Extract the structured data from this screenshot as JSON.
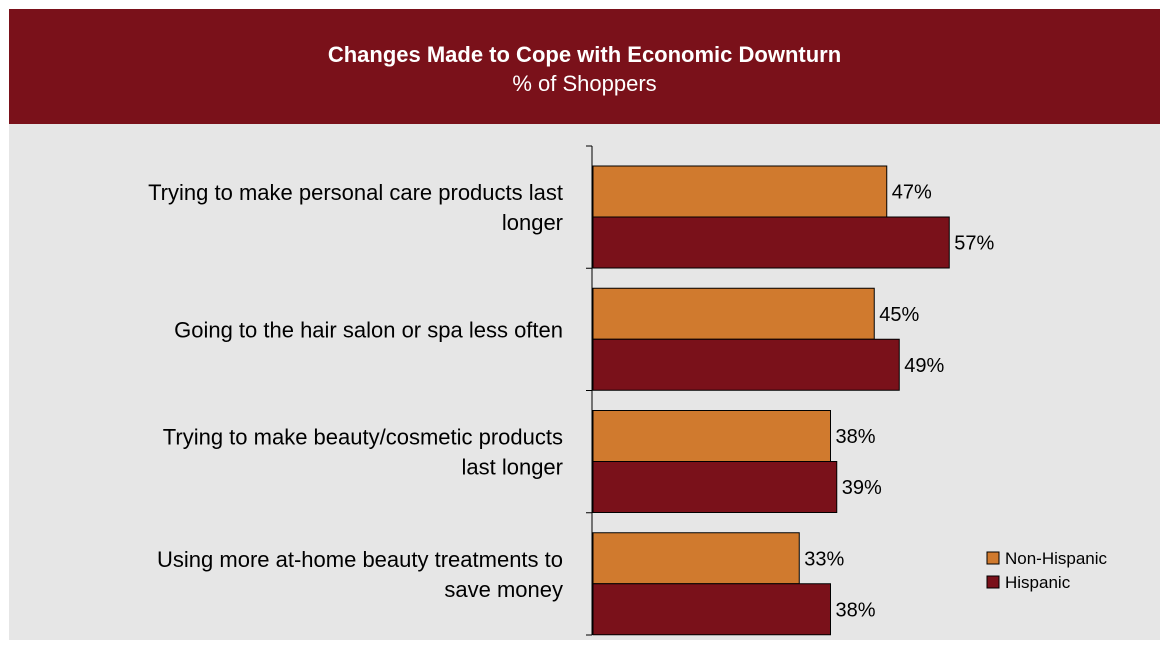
{
  "colors": {
    "header_bg": "#7a111a",
    "non_hispanic": "#d07a2e",
    "hispanic": "#7a111a",
    "plot_bg": "#e6e6e6"
  },
  "chart_data": {
    "type": "bar",
    "orientation": "horizontal",
    "title": "Changes Made to Cope with Economic Downturn",
    "subtitle": "% of Shoppers",
    "categories": [
      [
        "Trying to make personal care products last",
        "longer"
      ],
      [
        "Going to the hair salon or spa less often"
      ],
      [
        "Trying to make beauty/cosmetic products",
        "last longer"
      ],
      [
        "Using more at-home beauty treatments to",
        "save money"
      ]
    ],
    "series": [
      {
        "name": "Non-Hispanic",
        "values": [
          47,
          45,
          38,
          33
        ],
        "color": "#d07a2e"
      },
      {
        "name": "Hispanic",
        "values": [
          57,
          49,
          39,
          38
        ],
        "color": "#7a111a"
      }
    ],
    "value_suffix": "%",
    "xlim": [
      0,
      100
    ],
    "grid": false,
    "legend": "bottom-right"
  }
}
